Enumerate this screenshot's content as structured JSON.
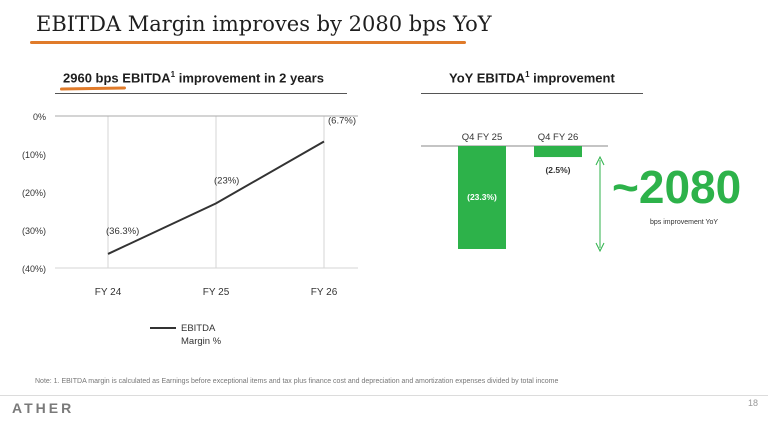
{
  "title": "EBITDA Margin improves by 2080 bps YoY",
  "left_panel": {
    "subtitle_bold": "2960 bps",
    "subtitle_rest": " EBITDA",
    "subtitle_sup": "1",
    "subtitle_tail": " improvement in 2 years"
  },
  "right_panel": {
    "subtitle": "YoY EBITDA",
    "subtitle_sup": "1",
    "subtitle_tail": " improvement",
    "big_number": "~2080",
    "big_caption": "bps improvement YoY"
  },
  "note": "Note: 1. EBITDA margin is calculated as Earnings before exceptional items and tax plus finance cost and depreciation and amortization expenses divided by total income",
  "logo": "ATHER",
  "page_number": "18",
  "colors": {
    "accent_orange": "#e07b2a",
    "bar_green": "#2db24a",
    "line": "#333333",
    "grid": "#d6d6d6"
  },
  "chart_data": [
    {
      "type": "line",
      "categories": [
        "FY 24",
        "FY 25",
        "FY 26"
      ],
      "series": [
        {
          "name": "EBITDA Margin %",
          "values": [
            -36.3,
            -23.0,
            -6.7
          ],
          "labels": [
            "(36.3%)",
            "(23%)",
            "(6.7%)"
          ]
        }
      ],
      "yticks": [
        0,
        -10,
        -20,
        -30,
        -40
      ],
      "ytick_labels": [
        "0%",
        "(10%)",
        "(20%)",
        "(30%)",
        "(40%)"
      ],
      "ylim": [
        -40,
        0
      ],
      "grid": "vertical",
      "legend": "bottom-left"
    },
    {
      "type": "bar",
      "categories": [
        "Q4 FY 25",
        "Q4 FY 26"
      ],
      "values": [
        -23.3,
        -2.5
      ],
      "labels": [
        "(23.3%)",
        "(2.5%)"
      ],
      "legend": "none"
    }
  ]
}
